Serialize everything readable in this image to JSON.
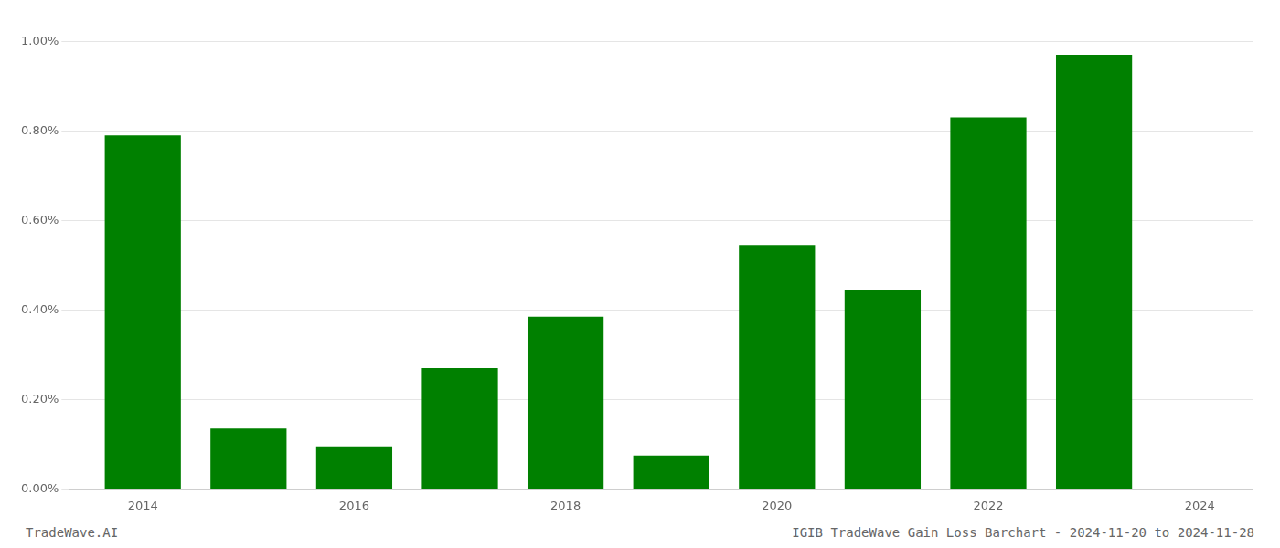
{
  "chart_data": {
    "type": "bar",
    "x": [
      2014,
      2015,
      2016,
      2017,
      2018,
      2019,
      2020,
      2021,
      2022,
      2023
    ],
    "values": [
      0.0079,
      0.00135,
      0.00095,
      0.0027,
      0.00385,
      0.00075,
      0.00545,
      0.00445,
      0.0083,
      0.0097
    ],
    "color": "#008000",
    "xlim": [
      2013.3,
      2024.5
    ],
    "xticks": [
      2014,
      2016,
      2018,
      2020,
      2022,
      2024
    ],
    "ylim": [
      0,
      0.0105
    ],
    "yticks": [
      {
        "value": 0.0,
        "label": "0.00%"
      },
      {
        "value": 0.002,
        "label": "0.20%"
      },
      {
        "value": 0.004,
        "label": "0.40%"
      },
      {
        "value": 0.006,
        "label": "0.60%"
      },
      {
        "value": 0.008,
        "label": "0.80%"
      },
      {
        "value": 0.01,
        "label": "1.00%"
      }
    ],
    "grid": true,
    "annotations": [
      "TradeWave.AI",
      "IGIB TradeWave Gain Loss Barchart - 2024-11-20 to 2024-11-28"
    ]
  }
}
